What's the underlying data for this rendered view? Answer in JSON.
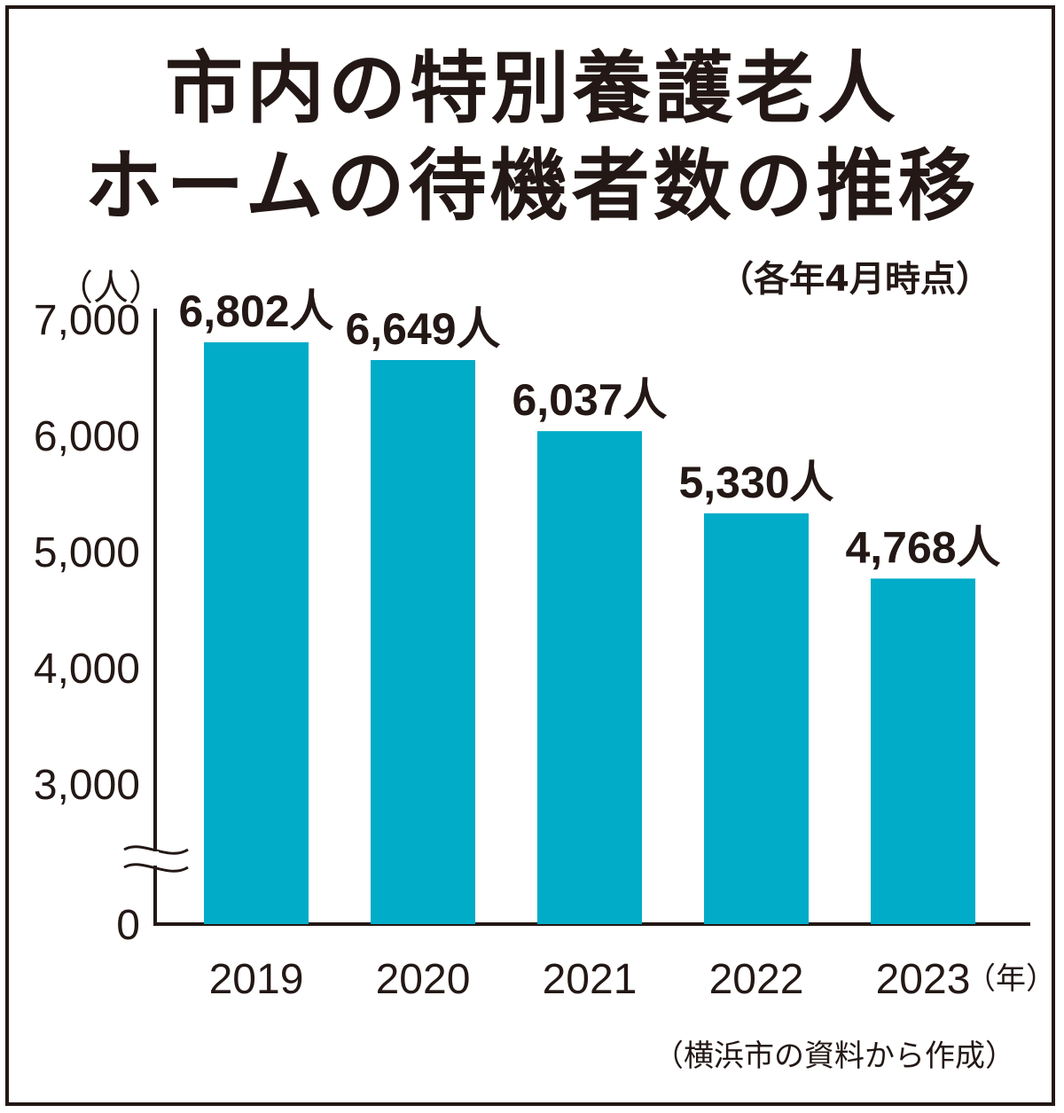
{
  "chart_data": {
    "type": "bar",
    "title": "市内の特別養護老人ホームの待機者数の推移",
    "title_lines": [
      "市内の特別養護老人",
      "ホームの待機者数の推移"
    ],
    "subtitle": "（各年4月時点）",
    "source": "（横浜市の資料から作成）",
    "y_unit": "（人）",
    "x_unit": "（年）",
    "categories": [
      "2019",
      "2020",
      "2021",
      "2022",
      "2023"
    ],
    "values": [
      6802,
      6649,
      6037,
      5330,
      4768
    ],
    "value_labels": [
      "6,802人",
      "6,649人",
      "6,037人",
      "5,330人",
      "4,768人"
    ],
    "y_ticks": [
      "7,000",
      "6,000",
      "5,000",
      "4,000",
      "3,000",
      "0"
    ],
    "ylim": [
      0,
      7000
    ],
    "axis_break": true,
    "grid": false,
    "bar_color": "#00acc8",
    "text_color": "#231815"
  }
}
